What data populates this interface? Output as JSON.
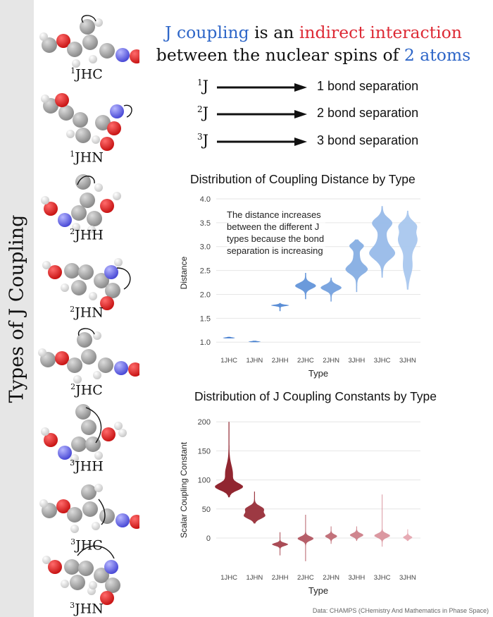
{
  "sidebar": {
    "title": "Types of J Coupling"
  },
  "molecules": [
    {
      "sup": "1",
      "type": "JHC"
    },
    {
      "sup": "1",
      "type": "JHN"
    },
    {
      "sup": "2",
      "type": "JHH"
    },
    {
      "sup": "2",
      "type": "JHN"
    },
    {
      "sup": "2",
      "type": "JHC"
    },
    {
      "sup": "3",
      "type": "JHH"
    },
    {
      "sup": "3",
      "type": "JHC"
    },
    {
      "sup": "3",
      "type": "JHN"
    }
  ],
  "headline": {
    "part1": "J coupling",
    "part2": " is an ",
    "part3": "indirect interaction",
    "part4": "between the nuclear spins of ",
    "part5": "2 atoms"
  },
  "legend": [
    {
      "sup": "1",
      "symbol": "J",
      "text": "1 bond separation"
    },
    {
      "sup": "2",
      "symbol": "J",
      "text": "2 bond separation"
    },
    {
      "sup": "3",
      "symbol": "J",
      "text": "3 bond separation"
    }
  ],
  "colors": {
    "blue": "#2e66c8",
    "red": "#dd2a35",
    "dist_dark": "#2f6fc9",
    "dist_light": "#a9c7ee",
    "const_dark": "#8b1a25",
    "const_light": "#e6a6b0"
  },
  "annotation": "The distance increases between the different J types because the bond separation is increasing",
  "credit": "Data: CHAMPS (CHemistry And Mathematics in Phase Space)",
  "chart_data": [
    {
      "type": "violin",
      "title": "Distribution of Coupling Distance by Type",
      "xlabel": "Type",
      "ylabel": "Distance",
      "categories": [
        "1JHC",
        "1JHN",
        "2JHH",
        "2JHC",
        "2JHN",
        "3JHH",
        "3JHC",
        "3JHN"
      ],
      "medians": [
        1.09,
        1.01,
        1.77,
        2.18,
        2.14,
        2.75,
        2.95,
        3.05
      ],
      "ranges": [
        [
          1.08,
          1.11
        ],
        [
          1.0,
          1.03
        ],
        [
          1.65,
          1.82
        ],
        [
          1.9,
          2.45
        ],
        [
          1.85,
          2.35
        ],
        [
          2.05,
          3.15
        ],
        [
          2.35,
          3.85
        ],
        [
          2.1,
          3.75
        ]
      ],
      "ylim": [
        0.9,
        4.0
      ],
      "yticks": [
        1.0,
        1.5,
        2.0,
        2.5,
        3.0,
        3.5,
        4.0
      ],
      "ytick_labels": [
        "1.0",
        "1.5",
        "2.0",
        "2.5",
        "3.0",
        "3.5",
        "4.0"
      ]
    },
    {
      "type": "violin",
      "title": "Distribution of J Coupling Constants by Type",
      "xlabel": "Type",
      "ylabel": "Scalar Coupling Constant",
      "categories": [
        "1JHC",
        "1JHN",
        "2JHH",
        "2JHC",
        "2JHN",
        "3JHH",
        "3JHC",
        "3JHN"
      ],
      "medians": [
        88,
        42,
        -11,
        -1,
        3,
        5,
        4,
        1
      ],
      "ranges": [
        [
          70,
          200
        ],
        [
          25,
          80
        ],
        [
          -30,
          10
        ],
        [
          -40,
          40
        ],
        [
          -10,
          20
        ],
        [
          -5,
          20
        ],
        [
          -15,
          75
        ],
        [
          -5,
          15
        ]
      ],
      "ylim": [
        -45,
        210
      ],
      "yticks": [
        0,
        50,
        100,
        150,
        200
      ],
      "ytick_labels": [
        "0",
        "50",
        "100",
        "150",
        "200"
      ]
    }
  ]
}
